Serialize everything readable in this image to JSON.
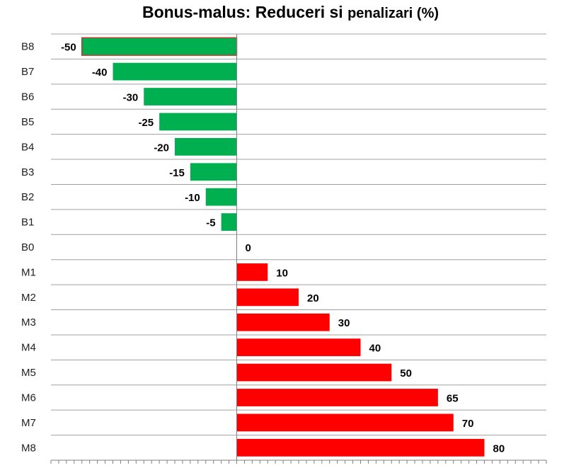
{
  "chart_data": {
    "type": "bar",
    "orientation": "horizontal",
    "title_main": "Bonus-malus:  Reduceri si ",
    "title_tail": "penalizari (%)",
    "categories": [
      "B8",
      "B7",
      "B6",
      "B5",
      "B4",
      "B3",
      "B2",
      "B1",
      "B0",
      "M1",
      "M2",
      "M3",
      "M4",
      "M5",
      "M6",
      "M7",
      "M8"
    ],
    "values": [
      -50,
      -40,
      -30,
      -25,
      -20,
      -15,
      -10,
      -5,
      0,
      10,
      20,
      30,
      40,
      50,
      65,
      70,
      80
    ],
    "xlim": [
      -60,
      100
    ],
    "grid": true,
    "legend": "none",
    "colors": {
      "negative": "#00b050",
      "positive": "#ff0000",
      "first_bar_border": "#c0392b",
      "grid": "#a0a0a0",
      "axis": "#808080"
    }
  }
}
